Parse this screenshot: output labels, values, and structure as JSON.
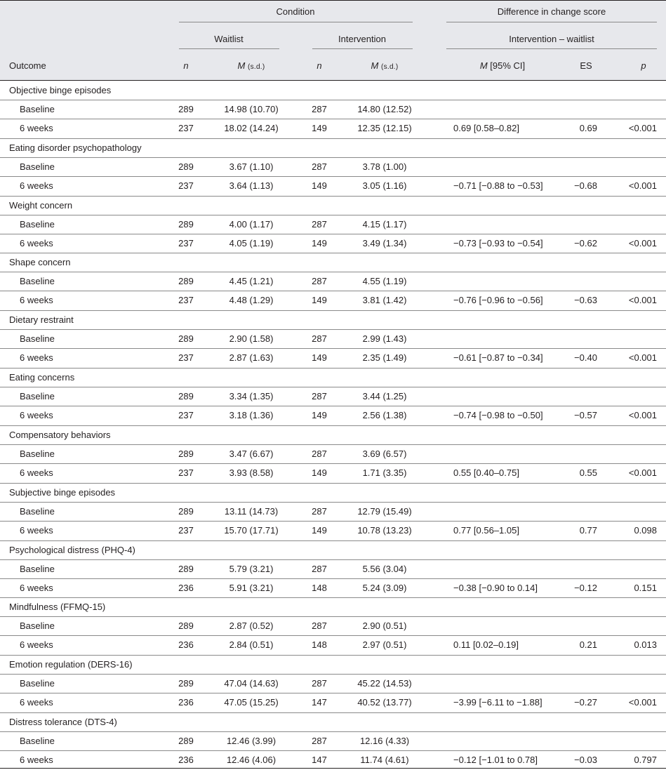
{
  "header": {
    "condition": "Condition",
    "difference": "Difference in change score",
    "waitlist": "Waitlist",
    "intervention": "Intervention",
    "contrast": "Intervention – waitlist",
    "outcome": "Outcome",
    "n": "n",
    "m": "M",
    "sd": "(s.d.)",
    "ci": "[95% CI]",
    "es": "ES",
    "p": "p"
  },
  "rows_order": [
    "baseline",
    "six_weeks"
  ],
  "outcomes": [
    {
      "name": "Objective binge episodes",
      "baseline": {
        "label": "Baseline",
        "wn": "289",
        "wm": "14.98 (10.70)",
        "in": "287",
        "im": "14.80 (12.52)"
      },
      "six_weeks": {
        "label": "6 weeks",
        "wn": "237",
        "wm": "18.02 (14.24)",
        "in": "149",
        "im": "12.35 (12.15)",
        "ci": "0.69 [0.58–0.82]",
        "es": "0.69",
        "p": "<0.001"
      }
    },
    {
      "name": "Eating disorder psychopathology",
      "baseline": {
        "label": "Baseline",
        "wn": "289",
        "wm": "3.67 (1.10)",
        "in": "287",
        "im": "3.78 (1.00)"
      },
      "six_weeks": {
        "label": "6 weeks",
        "wn": "237",
        "wm": "3.64 (1.13)",
        "in": "149",
        "im": "3.05 (1.16)",
        "ci": "−0.71 [−0.88 to −0.53]",
        "es": "−0.68",
        "p": "<0.001"
      }
    },
    {
      "name": "Weight concern",
      "baseline": {
        "label": "Baseline",
        "wn": "289",
        "wm": "4.00 (1.17)",
        "in": "287",
        "im": "4.15 (1.17)"
      },
      "six_weeks": {
        "label": "6 weeks",
        "wn": "237",
        "wm": "4.05 (1.19)",
        "in": "149",
        "im": "3.49 (1.34)",
        "ci": "−0.73 [−0.93 to −0.54]",
        "es": "−0.62",
        "p": "<0.001"
      }
    },
    {
      "name": "Shape concern",
      "baseline": {
        "label": "Baseline",
        "wn": "289",
        "wm": "4.45 (1.21)",
        "in": "287",
        "im": "4.55 (1.19)"
      },
      "six_weeks": {
        "label": "6 weeks",
        "wn": "237",
        "wm": "4.48 (1.29)",
        "in": "149",
        "im": "3.81 (1.42)",
        "ci": "−0.76 [−0.96 to −0.56]",
        "es": "−0.63",
        "p": "<0.001"
      }
    },
    {
      "name": "Dietary restraint",
      "baseline": {
        "label": "Baseline",
        "wn": "289",
        "wm": "2.90 (1.58)",
        "in": "287",
        "im": "2.99 (1.43)"
      },
      "six_weeks": {
        "label": "6 weeks",
        "wn": "237",
        "wm": "2.87 (1.63)",
        "in": "149",
        "im": "2.35 (1.49)",
        "ci": "−0.61 [−0.87 to −0.34]",
        "es": "−0.40",
        "p": "<0.001"
      }
    },
    {
      "name": "Eating concerns",
      "baseline": {
        "label": "Baseline",
        "wn": "289",
        "wm": "3.34 (1.35)",
        "in": "287",
        "im": "3.44 (1.25)"
      },
      "six_weeks": {
        "label": "6 weeks",
        "wn": "237",
        "wm": "3.18 (1.36)",
        "in": "149",
        "im": "2.56 (1.38)",
        "ci": "−0.74 [−0.98 to −0.50]",
        "es": "−0.57",
        "p": "<0.001"
      }
    },
    {
      "name": "Compensatory behaviors",
      "baseline": {
        "label": "Baseline",
        "wn": "289",
        "wm": "3.47 (6.67)",
        "in": "287",
        "im": "3.69 (6.57)"
      },
      "six_weeks": {
        "label": "6 weeks",
        "wn": "237",
        "wm": "3.93 (8.58)",
        "in": "149",
        "im": "1.71 (3.35)",
        "ci": "0.55 [0.40–0.75]",
        "es": "0.55",
        "p": "<0.001"
      }
    },
    {
      "name": "Subjective binge episodes",
      "baseline": {
        "label": "Baseline",
        "wn": "289",
        "wm": "13.11 (14.73)",
        "in": "287",
        "im": "12.79 (15.49)"
      },
      "six_weeks": {
        "label": "6 weeks",
        "wn": "237",
        "wm": "15.70 (17.71)",
        "in": "149",
        "im": "10.78 (13.23)",
        "ci": "0.77 [0.56–1.05]",
        "es": "0.77",
        "p": "0.098"
      }
    },
    {
      "name": "Psychological distress (PHQ-4)",
      "baseline": {
        "label": "Baseline",
        "wn": "289",
        "wm": "5.79 (3.21)",
        "in": "287",
        "im": "5.56 (3.04)"
      },
      "six_weeks": {
        "label": "6 weeks",
        "wn": "236",
        "wm": "5.91 (3.21)",
        "in": "148",
        "im": "5.24 (3.09)",
        "ci": "−0.38 [−0.90 to 0.14]",
        "es": "−0.12",
        "p": "0.151"
      }
    },
    {
      "name": "Mindfulness (FFMQ-15)",
      "baseline": {
        "label": "Baseline",
        "wn": "289",
        "wm": "2.87 (0.52)",
        "in": "287",
        "im": "2.90 (0.51)"
      },
      "six_weeks": {
        "label": "6 weeks",
        "wn": "236",
        "wm": "2.84 (0.51)",
        "in": "148",
        "im": "2.97 (0.51)",
        "ci": "0.11 [0.02–0.19]",
        "es": "0.21",
        "p": "0.013"
      }
    },
    {
      "name": "Emotion regulation (DERS-16)",
      "baseline": {
        "label": "Baseline",
        "wn": "289",
        "wm": "47.04 (14.63)",
        "in": "287",
        "im": "45.22 (14.53)"
      },
      "six_weeks": {
        "label": "6 weeks",
        "wn": "236",
        "wm": "47.05 (15.25)",
        "in": "147",
        "im": "40.52 (13.77)",
        "ci": "−3.99 [−6.11 to −1.88]",
        "es": "−0.27",
        "p": "<0.001"
      }
    },
    {
      "name": "Distress tolerance (DTS-4)",
      "baseline": {
        "label": "Baseline",
        "wn": "289",
        "wm": "12.46 (3.99)",
        "in": "287",
        "im": "12.16 (4.33)"
      },
      "six_weeks": {
        "label": "6 weeks",
        "wn": "236",
        "wm": "12.46 (4.06)",
        "in": "147",
        "im": "11.74 (4.61)",
        "ci": "−0.12 [−1.01 to 0.78]",
        "es": "−0.03",
        "p": "0.797"
      }
    }
  ]
}
